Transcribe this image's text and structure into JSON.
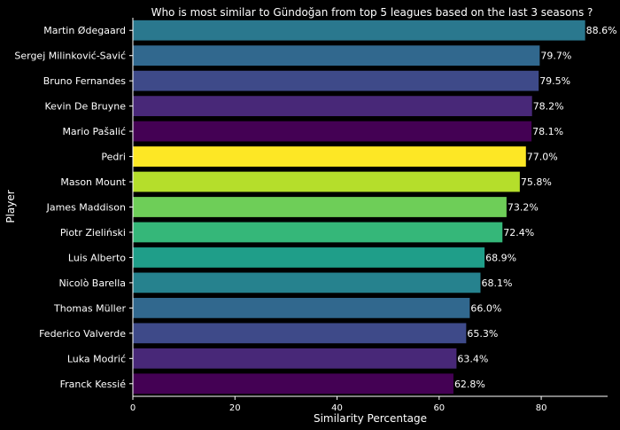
{
  "chart_data": {
    "type": "bar",
    "orientation": "horizontal",
    "title": "Who is most similar to Gündoğan from top 5 leagues based on the last 3 seasons ?",
    "xlabel": "Similarity Percentage",
    "ylabel": "Player",
    "xlim": [
      0,
      93
    ],
    "xticks": [
      0,
      20,
      40,
      60,
      80
    ],
    "grid": false,
    "categories": [
      "Martin Ødegaard",
      "Sergej Milinković-Savić",
      "Bruno Fernandes",
      "Kevin De Bruyne",
      "Mario Pašalić",
      "Pedri",
      "Mason Mount",
      "James Maddison",
      "Piotr Zieliński",
      "Luis Alberto",
      "Nicolò Barella",
      "Thomas Müller",
      "Federico Valverde",
      "Luka Modrić",
      "Franck Kessié"
    ],
    "values": [
      88.6,
      79.7,
      79.5,
      78.2,
      78.1,
      77.0,
      75.8,
      73.2,
      72.4,
      68.9,
      68.1,
      66.0,
      65.3,
      63.4,
      62.8
    ],
    "labels": [
      "88.6%",
      "79.7%",
      "79.5%",
      "78.2%",
      "78.1%",
      "77.0%",
      "75.8%",
      "73.2%",
      "72.4%",
      "68.9%",
      "68.1%",
      "66.0%",
      "65.3%",
      "63.4%",
      "62.8%"
    ],
    "colors": [
      "#2a788e",
      "#31688e",
      "#3e4a89",
      "#482878",
      "#440154",
      "#fde725",
      "#b5de2b",
      "#6ece58",
      "#35b779",
      "#1f9e89",
      "#26828e",
      "#31688e",
      "#3e4a89",
      "#482878",
      "#440154"
    ]
  }
}
